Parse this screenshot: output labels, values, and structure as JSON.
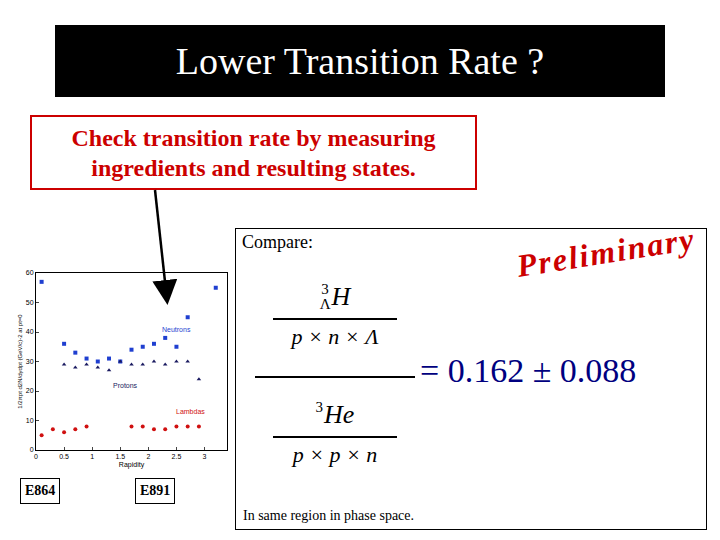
{
  "slide": {
    "title": "Lower Transition Rate ?",
    "callout": [
      "Check transition rate by measuring",
      "ingredients and resulting states."
    ],
    "compare": "Compare:",
    "stamp": "Preliminary",
    "formula": {
      "numerator": {
        "mass": "3",
        "hyper": "Λ",
        "symbol": "H",
        "bottom": "p × n × Λ"
      },
      "denominator": {
        "mass": "3",
        "symbol": "He",
        "bottom": "p × p × n"
      }
    },
    "result": "= 0.162 ± 0.088",
    "note": "In same region in phase space.",
    "labels": [
      "E864",
      "E891"
    ]
  },
  "chart_data": {
    "type": "scatter",
    "x_label": "Rapidity",
    "y_label": "1/2πpt d2N/dydpt (GeV/c)-2 at pt=0",
    "xlim": [
      0,
      3.4
    ],
    "xticks": [
      0,
      0.5,
      1,
      1.5,
      2,
      2.5,
      3
    ],
    "ylim": [
      0,
      60
    ],
    "yticks": [
      0,
      10,
      20,
      30,
      40,
      50,
      60
    ],
    "series": [
      {
        "name": "Neutrons",
        "color": "#1f3fd0",
        "marker": "square",
        "x": [
          0.1,
          0.5,
          0.7,
          0.9,
          1.1,
          1.3,
          1.5,
          1.7,
          1.9,
          2.1,
          2.3,
          2.5,
          2.7,
          3.2
        ],
        "values": [
          57,
          36,
          33,
          31,
          30,
          31,
          30,
          34,
          35,
          36,
          38,
          35,
          45,
          55
        ]
      },
      {
        "name": "Protons",
        "color": "#1a1a60",
        "marker": "triangle-up",
        "x": [
          0.5,
          0.7,
          0.9,
          1.1,
          1.3,
          1.5,
          1.7,
          1.9,
          2.1,
          2.3,
          2.5,
          2.7,
          2.9
        ],
        "values": [
          29,
          28,
          29,
          28,
          27,
          30,
          29,
          29,
          30,
          29,
          30,
          30,
          24
        ]
      },
      {
        "name": "Lambdas",
        "color": "#d01010",
        "marker": "circle",
        "x": [
          0.1,
          0.3,
          0.5,
          0.7,
          0.9,
          1.7,
          1.9,
          2.1,
          2.3,
          2.5,
          2.7,
          2.9
        ],
        "values": [
          5,
          7,
          6,
          7,
          8,
          8,
          8,
          7,
          7,
          8,
          8,
          8
        ]
      }
    ]
  }
}
